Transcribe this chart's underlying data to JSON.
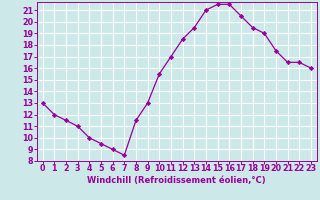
{
  "x": [
    0,
    1,
    2,
    3,
    4,
    5,
    6,
    7,
    8,
    9,
    10,
    11,
    12,
    13,
    14,
    15,
    16,
    17,
    18,
    19,
    20,
    21,
    22,
    23
  ],
  "y": [
    13,
    12,
    11.5,
    11,
    10,
    9.5,
    9,
    8.5,
    11.5,
    13,
    15.5,
    17,
    18.5,
    19.5,
    21,
    21.5,
    21.5,
    20.5,
    19.5,
    19,
    17.5,
    16.5,
    16.5,
    16
  ],
  "line_color": "#990099",
  "marker": "D",
  "marker_size": 2.2,
  "bg_color": "#cce8e8",
  "grid_color": "#ffffff",
  "xlabel": "Windchill (Refroidissement éolien,°C)",
  "xlabel_color": "#990099",
  "xlabel_fontsize": 6.0,
  "tick_color": "#990099",
  "tick_fontsize": 5.8,
  "ylim": [
    8,
    21.7
  ],
  "xlim": [
    -0.5,
    23.5
  ],
  "yticks": [
    8,
    9,
    10,
    11,
    12,
    13,
    14,
    15,
    16,
    17,
    18,
    19,
    20,
    21
  ],
  "xticks": [
    0,
    1,
    2,
    3,
    4,
    5,
    6,
    7,
    8,
    9,
    10,
    11,
    12,
    13,
    14,
    15,
    16,
    17,
    18,
    19,
    20,
    21,
    22,
    23
  ]
}
